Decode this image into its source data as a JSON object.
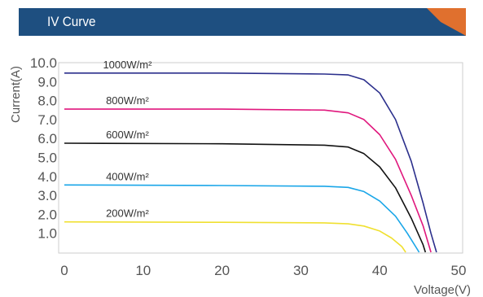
{
  "header": {
    "title": "IV Curve",
    "bar_color": "#1e4f80",
    "accent_color": "#e0702e"
  },
  "chart_data": {
    "type": "line",
    "title": "IV Curve",
    "xlabel": "Voltage(V)",
    "ylabel": "Current(A)",
    "xlim": [
      0,
      50
    ],
    "ylim": [
      0,
      10
    ],
    "x_ticks": [
      "0",
      "10",
      "20",
      "30",
      "40",
      "50"
    ],
    "y_ticks": [
      "1.0",
      "2.0",
      "3.0",
      "4.0",
      "5.0",
      "6.0",
      "7.0",
      "8.0",
      "9.0",
      "10.0"
    ],
    "grid": false,
    "series": [
      {
        "name": "1000W/m²",
        "color": "#2b2f8c",
        "points": [
          [
            0,
            9.45
          ],
          [
            20,
            9.45
          ],
          [
            33,
            9.4
          ],
          [
            36,
            9.35
          ],
          [
            38,
            9.1
          ],
          [
            40,
            8.4
          ],
          [
            42,
            7.0
          ],
          [
            44,
            4.8
          ],
          [
            45.5,
            2.6
          ],
          [
            46.5,
            1.0
          ],
          [
            47.2,
            0.0
          ]
        ]
      },
      {
        "name": "800W/m²",
        "color": "#e0177d",
        "points": [
          [
            0,
            7.55
          ],
          [
            20,
            7.55
          ],
          [
            33,
            7.5
          ],
          [
            36,
            7.35
          ],
          [
            38,
            7.0
          ],
          [
            40,
            6.2
          ],
          [
            42,
            4.9
          ],
          [
            44,
            3.0
          ],
          [
            45.5,
            1.4
          ],
          [
            46.5,
            0.0
          ]
        ]
      },
      {
        "name": "600W/m²",
        "color": "#111111",
        "points": [
          [
            0,
            5.75
          ],
          [
            20,
            5.72
          ],
          [
            33,
            5.65
          ],
          [
            36,
            5.55
          ],
          [
            38,
            5.2
          ],
          [
            40,
            4.5
          ],
          [
            42,
            3.4
          ],
          [
            44,
            1.8
          ],
          [
            45.5,
            0.4
          ],
          [
            45.8,
            0.0
          ]
        ]
      },
      {
        "name": "400W/m²",
        "color": "#1aa6e8",
        "points": [
          [
            0,
            3.55
          ],
          [
            20,
            3.52
          ],
          [
            33,
            3.48
          ],
          [
            36,
            3.42
          ],
          [
            38,
            3.2
          ],
          [
            40,
            2.7
          ],
          [
            42,
            1.9
          ],
          [
            43.5,
            1.0
          ],
          [
            45,
            0.0
          ]
        ]
      },
      {
        "name": "200W/m²",
        "color": "#f0e030",
        "points": [
          [
            0,
            1.6
          ],
          [
            20,
            1.58
          ],
          [
            33,
            1.55
          ],
          [
            36,
            1.5
          ],
          [
            38,
            1.38
          ],
          [
            40,
            1.12
          ],
          [
            41.5,
            0.75
          ],
          [
            42.8,
            0.3
          ],
          [
            43.3,
            0.0
          ]
        ]
      }
    ]
  }
}
